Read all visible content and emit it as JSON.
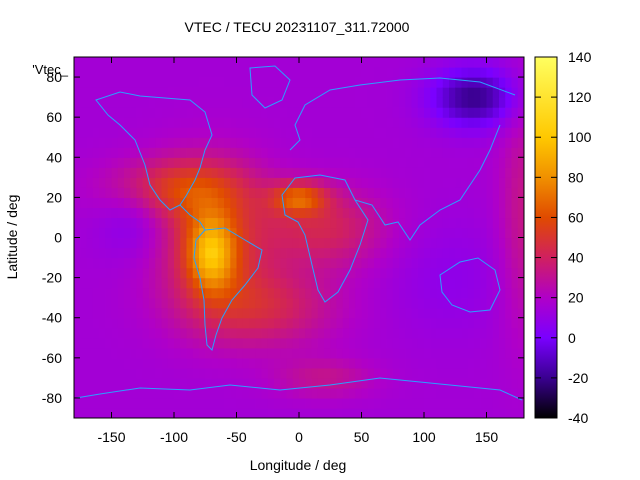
{
  "chart_data": {
    "type": "heatmap",
    "title": "VTEC / TECU 20231107_311.72000",
    "xlabel": "Longitude / deg",
    "ylabel": "Latitude / deg",
    "xlim": [
      -180,
      180
    ],
    "ylim": [
      -90,
      90
    ],
    "xticks": [
      -150,
      -100,
      -50,
      0,
      50,
      100,
      150
    ],
    "yticks": [
      -80,
      -60,
      -40,
      -20,
      0,
      20,
      40,
      60,
      80
    ],
    "colorbar": {
      "range": [
        -40,
        140
      ],
      "ticks": [
        -40,
        -20,
        0,
        20,
        40,
        60,
        80,
        100,
        120,
        140
      ],
      "palette": [
        "#000000",
        "#3a0090",
        "#7a00ff",
        "#b000c8",
        "#d02060",
        "#e04a00",
        "#f09000",
        "#ffc800",
        "#ffff60"
      ]
    },
    "legend_entry": "'Vtec_",
    "overlay": "coastlines",
    "overlay_color": "#2aa0ff",
    "features": [
      {
        "name": "South America equatorial anomaly peak",
        "lon": -70,
        "lat": -5,
        "value": 120
      },
      {
        "name": "West Africa peak",
        "lon": 0,
        "lat": 20,
        "value": 110
      },
      {
        "name": "Pacific low (NE Asia)",
        "lon": 140,
        "lat": 70,
        "value": -20
      },
      {
        "name": "Pacific minimum",
        "lon": -130,
        "lat": 10,
        "value": 10
      }
    ]
  }
}
